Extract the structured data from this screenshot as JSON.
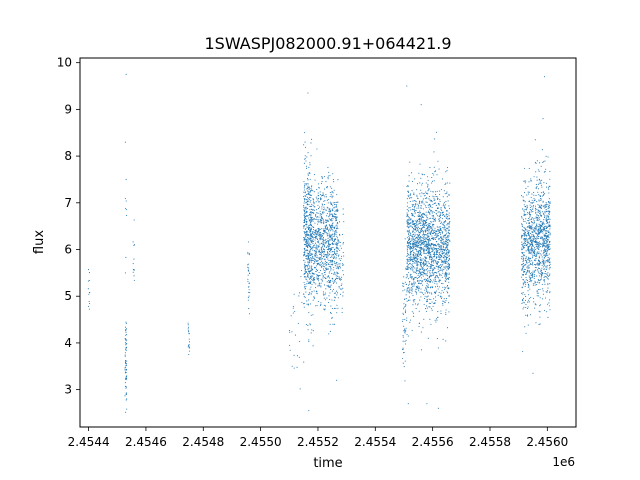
{
  "chart_data": {
    "type": "scatter",
    "title": "1SWASPJ082000.91+064421.9",
    "xlabel": "time",
    "ylabel": "flux",
    "x_offset_label": "1e6",
    "xlim": [
      2454370,
      2456100
    ],
    "ylim": [
      2.2,
      10.1
    ],
    "x_ticks": [
      2454400,
      2454600,
      2454800,
      2455000,
      2455200,
      2455400,
      2455600,
      2455800,
      2456000
    ],
    "x_tick_labels": [
      "2.4544",
      "2.4546",
      "2.4548",
      "2.4550",
      "2.4552",
      "2.4554",
      "2.4556",
      "2.4558",
      "2.4560"
    ],
    "y_ticks": [
      3,
      4,
      5,
      6,
      7,
      8,
      9,
      10
    ],
    "y_tick_labels": [
      "3",
      "4",
      "5",
      "6",
      "7",
      "8",
      "9",
      "10"
    ],
    "grid": false,
    "legend": "none",
    "marker_color": "#1f77b4",
    "series": [
      {
        "clusters": [
          {
            "x_range": [
              2454398,
              2454404
            ],
            "y_mean": 5.2,
            "y_sd": 0.3,
            "n": 12
          },
          {
            "x_range": [
              2454527,
              2454533
            ],
            "y_mean": 3.6,
            "y_sd": 0.45,
            "n": 70
          },
          {
            "x_range": [
              2454527,
              2454533
            ],
            "y_mean": 6.8,
            "y_sd": 0.9,
            "n": 8
          },
          {
            "x_range": [
              2454555,
              2454560
            ],
            "y_mean": 6.0,
            "y_sd": 0.5,
            "n": 12
          },
          {
            "x_range": [
              2454747,
              2454752
            ],
            "y_mean": 4.0,
            "y_sd": 0.2,
            "n": 18
          },
          {
            "x_range": [
              2454955,
              2454962
            ],
            "y_mean": 5.4,
            "y_sd": 0.35,
            "n": 30
          },
          {
            "x_range": [
              2455100,
              2455145
            ],
            "y_mean": 4.4,
            "y_sd": 0.6,
            "n": 25
          },
          {
            "x_range": [
              2455150,
              2455180
            ],
            "y_mean": 6.2,
            "y_sd": 0.75,
            "n": 500
          },
          {
            "x_range": [
              2455180,
              2455270
            ],
            "y_mean": 6.1,
            "y_sd": 0.65,
            "n": 900
          },
          {
            "x_range": [
              2455270,
              2455290
            ],
            "y_mean": 5.7,
            "y_sd": 0.45,
            "n": 60
          },
          {
            "x_range": [
              2455495,
              2455510
            ],
            "y_mean": 4.6,
            "y_sd": 0.6,
            "n": 60
          },
          {
            "x_range": [
              2455510,
              2455530
            ],
            "y_mean": 6.0,
            "y_sd": 0.75,
            "n": 250
          },
          {
            "x_range": [
              2455530,
              2455660
            ],
            "y_mean": 6.05,
            "y_sd": 0.65,
            "n": 1600
          },
          {
            "x_range": [
              2455910,
              2455935
            ],
            "y_mean": 6.0,
            "y_sd": 0.7,
            "n": 250
          },
          {
            "x_range": [
              2455935,
              2456010
            ],
            "y_mean": 6.2,
            "y_sd": 0.65,
            "n": 900
          }
        ],
        "outliers": [
          {
            "x": 2454531,
            "y": 9.75
          },
          {
            "x": 2454531,
            "y": 7.5
          },
          {
            "x": 2455165,
            "y": 9.35
          },
          {
            "x": 2455168,
            "y": 2.55
          },
          {
            "x": 2455155,
            "y": 8.3
          },
          {
            "x": 2455510,
            "y": 9.5
          },
          {
            "x": 2455515,
            "y": 2.7
          },
          {
            "x": 2455560,
            "y": 9.1
          },
          {
            "x": 2455580,
            "y": 2.7
          },
          {
            "x": 2455620,
            "y": 2.6
          },
          {
            "x": 2455990,
            "y": 9.7
          },
          {
            "x": 2455985,
            "y": 8.8
          },
          {
            "x": 2455950,
            "y": 3.35
          },
          {
            "x": 2455265,
            "y": 3.2
          },
          {
            "x": 2455110,
            "y": 3.5
          }
        ]
      }
    ]
  }
}
